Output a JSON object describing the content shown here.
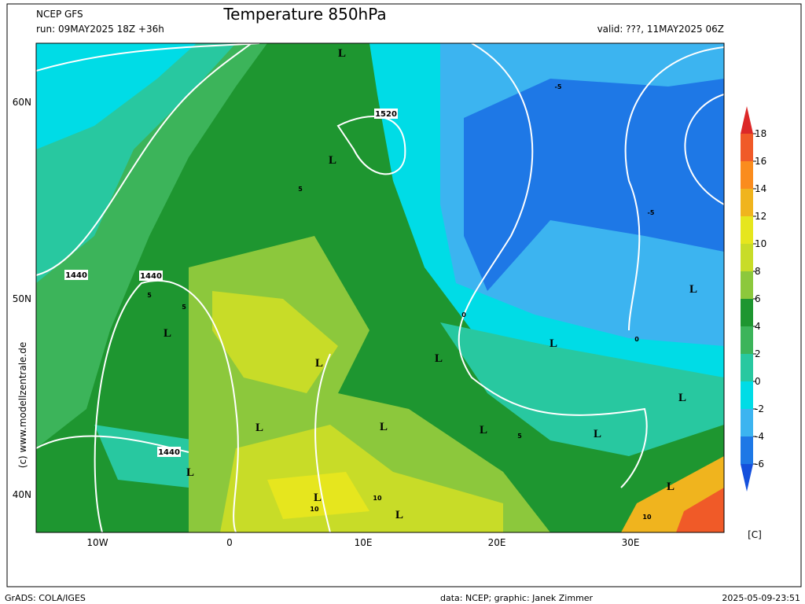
{
  "header": {
    "model": "NCEP GFS",
    "run": "run: 09MAY2025 18Z +36h",
    "title": "Temperature 850hPa",
    "valid": "valid: ???, 11MAY2025 06Z"
  },
  "axes": {
    "lat": [
      "60N",
      "50N",
      "40N"
    ],
    "lon": [
      "10W",
      "0",
      "10E",
      "20E",
      "30E"
    ]
  },
  "colorbar": {
    "labels": [
      18,
      16,
      14,
      12,
      10,
      8,
      6,
      4,
      2,
      0,
      -2,
      -4,
      -6
    ],
    "unit": "[C]",
    "colors": [
      "#1450dc",
      "#1e78e6",
      "#3cb4f0",
      "#00dce6",
      "#28c8a0",
      "#3cb45a",
      "#1e9630",
      "#8cc83c",
      "#c8dc28",
      "#e6e61e",
      "#f0b41e",
      "#fa8c1e",
      "#f05a28",
      "#dc2828"
    ]
  },
  "map": {
    "lows": [
      "L",
      "L",
      "L",
      "L",
      "L",
      "L",
      "L",
      "L",
      "L",
      "L",
      "L",
      "L",
      "L",
      "L",
      "L",
      "L"
    ],
    "contour_labels": [
      "1520",
      "1440",
      "1440",
      "1440",
      "5",
      "5",
      "5",
      "5",
      "0",
      "0",
      "-5",
      "-5",
      "10",
      "10",
      "10"
    ]
  },
  "side_text": "(c) www.modellzentrale.de",
  "footer": {
    "left": "GrADS: COLA/IGES",
    "credit": "data: NCEP; graphic: Janek Zimmer",
    "timestamp": "2025-05-09-23:51"
  }
}
